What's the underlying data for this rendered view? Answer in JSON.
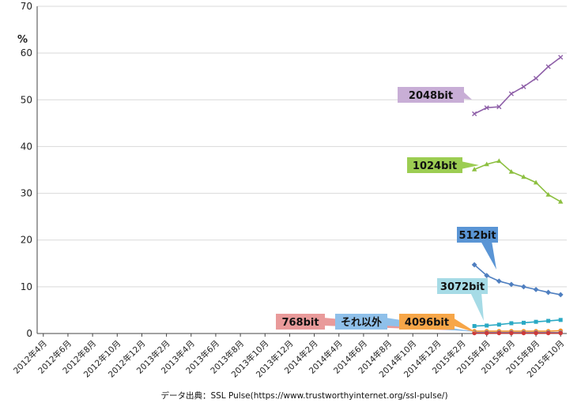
{
  "chart_data": {
    "type": "line",
    "unit_label": "%",
    "ylim": [
      0,
      70
    ],
    "yticks": [
      0,
      10,
      20,
      30,
      40,
      50,
      60,
      70
    ],
    "x_tick_labels": [
      "2012年4月",
      "2012年6月",
      "2012年8月",
      "2012年10月",
      "2012年12月",
      "2013年2月",
      "2013年4月",
      "2013年6月",
      "2013年8月",
      "2013年10月",
      "2013年12月",
      "2014年2月",
      "2014年4月",
      "2014年6月",
      "2014年8月",
      "2014年10月",
      "2014年12月",
      "2015年2月",
      "2015年4月",
      "2015年6月",
      "2015年8月",
      "2015年10月"
    ],
    "x_start_index": 35,
    "source": "データ出典：SSL Pulse(https://www.trustworthyinternet.org/ssl-pulse/)",
    "series": [
      {
        "name": "2048bit",
        "color": "#8e5fa8",
        "label_bg": "#c8aed6",
        "marker": "x",
        "values": [
          47.0,
          48.3,
          48.5,
          51.3,
          52.8,
          54.6,
          57.1,
          59.1
        ]
      },
      {
        "name": "1024bit",
        "color": "#8cbf3f",
        "label_bg": "#9ccd52",
        "marker": "triangle",
        "values": [
          35.1,
          36.2,
          36.9,
          34.6,
          33.5,
          32.3,
          29.7,
          28.2
        ]
      },
      {
        "name": "512bit",
        "color": "#4f7fc0",
        "label_bg": "#5a95d5",
        "marker": "diamond",
        "values": [
          14.7,
          12.4,
          11.2,
          10.5,
          10.0,
          9.4,
          8.8,
          8.3
        ]
      },
      {
        "name": "3072bit",
        "color": "#2aa9c4",
        "label_bg": "#a6dbe6",
        "marker": "square",
        "values": [
          1.6,
          1.7,
          1.9,
          2.2,
          2.3,
          2.5,
          2.7,
          2.9
        ]
      },
      {
        "name": "4096bit",
        "color": "#f0902a",
        "label_bg": "#f7a648",
        "marker": "circle",
        "values": [
          0.5,
          0.5,
          0.5,
          0.5,
          0.5,
          0.5,
          0.5,
          0.6
        ]
      },
      {
        "name": "それ以外",
        "color": "#5ca0db",
        "label_bg": "#8fc0ea",
        "marker": "circle",
        "values": [
          0.2,
          0.2,
          0.2,
          0.2,
          0.2,
          0.2,
          0.2,
          0.2
        ]
      },
      {
        "name": "768bit",
        "color": "#cc3a3a",
        "label_bg": "#e99a9a",
        "marker": "circle",
        "values": [
          0.1,
          0.1,
          0.1,
          0.1,
          0.1,
          0.1,
          0.1,
          0.1
        ]
      }
    ]
  }
}
